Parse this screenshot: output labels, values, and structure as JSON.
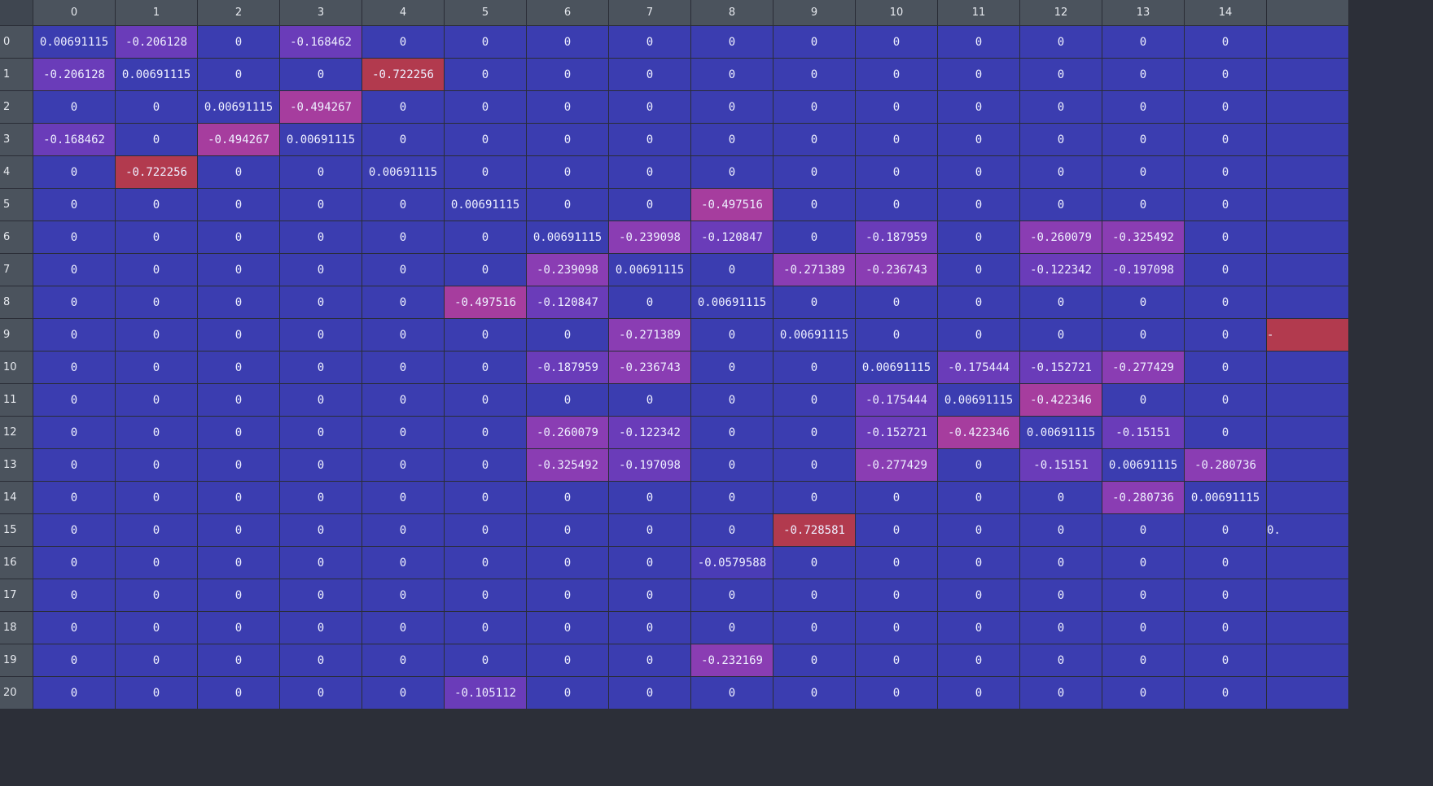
{
  "colors": {
    "zero": "#3b3db0",
    "diag": "#3b3db0",
    "header": "#4b535d",
    "header_text": "#e6e9ee",
    "cell_text": "#eef0ff",
    "scale": [
      "#3b3db0",
      "#6c3cb8",
      "#a23ea6",
      "#b23a4e"
    ]
  },
  "grid": {
    "column_headers": [
      "0",
      "1",
      "2",
      "3",
      "4",
      "5",
      "6",
      "7",
      "8",
      "9",
      "10",
      "11",
      "12",
      "13",
      "14",
      ""
    ],
    "row_headers": [
      "0",
      "1",
      "2",
      "3",
      "4",
      "5",
      "6",
      "7",
      "8",
      "9",
      "10",
      "11",
      "12",
      "13",
      "14",
      "15",
      "16",
      "17",
      "18",
      "19",
      "20"
    ],
    "rows": [
      [
        "0.00691115",
        "-0.206128",
        "0",
        "-0.168462",
        "0",
        "0",
        "0",
        "0",
        "0",
        "0",
        "0",
        "0",
        "0",
        "0",
        "0",
        ""
      ],
      [
        "-0.206128",
        "0.00691115",
        "0",
        "0",
        "-0.722256",
        "0",
        "0",
        "0",
        "0",
        "0",
        "0",
        "0",
        "0",
        "0",
        "0",
        ""
      ],
      [
        "0",
        "0",
        "0.00691115",
        "-0.494267",
        "0",
        "0",
        "0",
        "0",
        "0",
        "0",
        "0",
        "0",
        "0",
        "0",
        "0",
        ""
      ],
      [
        "-0.168462",
        "0",
        "-0.494267",
        "0.00691115",
        "0",
        "0",
        "0",
        "0",
        "0",
        "0",
        "0",
        "0",
        "0",
        "0",
        "0",
        ""
      ],
      [
        "0",
        "-0.722256",
        "0",
        "0",
        "0.00691115",
        "0",
        "0",
        "0",
        "0",
        "0",
        "0",
        "0",
        "0",
        "0",
        "0",
        ""
      ],
      [
        "0",
        "0",
        "0",
        "0",
        "0",
        "0.00691115",
        "0",
        "0",
        "-0.497516",
        "0",
        "0",
        "0",
        "0",
        "0",
        "0",
        ""
      ],
      [
        "0",
        "0",
        "0",
        "0",
        "0",
        "0",
        "0.00691115",
        "-0.239098",
        "-0.120847",
        "0",
        "-0.187959",
        "0",
        "-0.260079",
        "-0.325492",
        "0",
        ""
      ],
      [
        "0",
        "0",
        "0",
        "0",
        "0",
        "0",
        "-0.239098",
        "0.00691115",
        "0",
        "-0.271389",
        "-0.236743",
        "0",
        "-0.122342",
        "-0.197098",
        "0",
        ""
      ],
      [
        "0",
        "0",
        "0",
        "0",
        "0",
        "-0.497516",
        "-0.120847",
        "0",
        "0.00691115",
        "0",
        "0",
        "0",
        "0",
        "0",
        "0",
        ""
      ],
      [
        "0",
        "0",
        "0",
        "0",
        "0",
        "0",
        "0",
        "-0.271389",
        "0",
        "0.00691115",
        "0",
        "0",
        "0",
        "0",
        "0",
        "-"
      ],
      [
        "0",
        "0",
        "0",
        "0",
        "0",
        "0",
        "-0.187959",
        "-0.236743",
        "0",
        "0",
        "0.00691115",
        "-0.175444",
        "-0.152721",
        "-0.277429",
        "0",
        ""
      ],
      [
        "0",
        "0",
        "0",
        "0",
        "0",
        "0",
        "0",
        "0",
        "0",
        "0",
        "-0.175444",
        "0.00691115",
        "-0.422346",
        "0",
        "0",
        ""
      ],
      [
        "0",
        "0",
        "0",
        "0",
        "0",
        "0",
        "-0.260079",
        "-0.122342",
        "0",
        "0",
        "-0.152721",
        "-0.422346",
        "0.00691115",
        "-0.15151",
        "0",
        ""
      ],
      [
        "0",
        "0",
        "0",
        "0",
        "0",
        "0",
        "-0.325492",
        "-0.197098",
        "0",
        "0",
        "-0.277429",
        "0",
        "-0.15151",
        "0.00691115",
        "-0.280736",
        ""
      ],
      [
        "0",
        "0",
        "0",
        "0",
        "0",
        "0",
        "0",
        "0",
        "0",
        "0",
        "0",
        "0",
        "0",
        "-0.280736",
        "0.00691115",
        ""
      ],
      [
        "0",
        "0",
        "0",
        "0",
        "0",
        "0",
        "0",
        "0",
        "0",
        "-0.728581",
        "0",
        "0",
        "0",
        "0",
        "0",
        "0."
      ],
      [
        "0",
        "0",
        "0",
        "0",
        "0",
        "0",
        "0",
        "0",
        "-0.0579588",
        "0",
        "0",
        "0",
        "0",
        "0",
        "0",
        ""
      ],
      [
        "0",
        "0",
        "0",
        "0",
        "0",
        "0",
        "0",
        "0",
        "0",
        "0",
        "0",
        "0",
        "0",
        "0",
        "0",
        ""
      ],
      [
        "0",
        "0",
        "0",
        "0",
        "0",
        "0",
        "0",
        "0",
        "0",
        "0",
        "0",
        "0",
        "0",
        "0",
        "0",
        ""
      ],
      [
        "0",
        "0",
        "0",
        "0",
        "0",
        "0",
        "0",
        "0",
        "-0.232169",
        "0",
        "0",
        "0",
        "0",
        "0",
        "0",
        ""
      ],
      [
        "0",
        "0",
        "0",
        "0",
        "0",
        "-0.105112",
        "0",
        "0",
        "0",
        "0",
        "0",
        "0",
        "0",
        "0",
        "0",
        ""
      ]
    ],
    "cell_colors": {
      "9-15": "#b23a4e",
      "15-15": "#3b3db0"
    }
  }
}
